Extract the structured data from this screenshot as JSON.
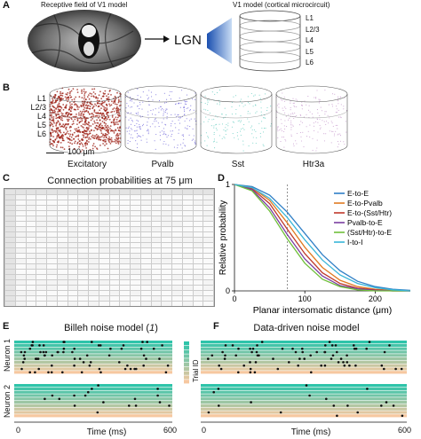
{
  "panels": {
    "A": "A",
    "B": "B",
    "C": "C",
    "D": "D",
    "E": "E",
    "F": "F"
  },
  "panel_a": {
    "rf_title": "Receptive field of V1 model",
    "lgn": "LGN",
    "v1_title": "V1 model (cortical microcircuit)",
    "layers": [
      "L1",
      "L2/3",
      "L4",
      "L5",
      "L6"
    ]
  },
  "panel_b": {
    "layers": [
      "L1",
      "L2/3",
      "L4",
      "L5",
      "L6"
    ],
    "scale_bar": "100 μm",
    "populations": [
      {
        "label": "Excitatory",
        "color": "#9b1c12"
      },
      {
        "label": "Pvalb",
        "color": "#4a3fd0"
      },
      {
        "label": "Sst",
        "color": "#3cc0b0"
      },
      {
        "label": "Htr3a",
        "color": "#b87ec0"
      }
    ]
  },
  "panel_c": {
    "title": "Connection probabilities at 75 μm"
  },
  "chart_data": {
    "type": "line",
    "xlabel": "Planar intersomatic distance (μm)",
    "ylabel": "Relative probability",
    "xlim": [
      0,
      250
    ],
    "ylim": [
      0,
      1
    ],
    "xticks": [
      0,
      100,
      200
    ],
    "yticks": [
      0,
      1
    ],
    "reference_x": 75,
    "legend_placement": "top-right",
    "x": [
      0,
      25,
      50,
      75,
      100,
      125,
      150,
      175,
      200,
      225,
      250
    ],
    "series": [
      {
        "name": "E-to-E",
        "color": "#2f7fc6",
        "values": [
          1.0,
          0.98,
          0.9,
          0.74,
          0.54,
          0.34,
          0.19,
          0.09,
          0.04,
          0.015,
          0.005
        ]
      },
      {
        "name": "E-to-Pvalb",
        "color": "#e07b22",
        "values": [
          1.0,
          0.97,
          0.85,
          0.64,
          0.41,
          0.22,
          0.1,
          0.04,
          0.015,
          0.005,
          0.0
        ]
      },
      {
        "name": "E-to-(Sst/Htr)",
        "color": "#c0392b",
        "values": [
          1.0,
          0.96,
          0.82,
          0.58,
          0.35,
          0.17,
          0.07,
          0.025,
          0.01,
          0.0,
          0.0
        ]
      },
      {
        "name": "Pvalb-to-E",
        "color": "#7b3fa0",
        "values": [
          1.0,
          0.95,
          0.78,
          0.53,
          0.3,
          0.14,
          0.05,
          0.02,
          0.005,
          0.0,
          0.0
        ]
      },
      {
        "name": "(Sst/Htr)-to-E",
        "color": "#6fbf3a",
        "values": [
          1.0,
          0.94,
          0.75,
          0.49,
          0.26,
          0.11,
          0.04,
          0.01,
          0.0,
          0.0,
          0.0
        ]
      },
      {
        "name": "I-to-I",
        "color": "#39b6d8",
        "values": [
          1.0,
          0.97,
          0.87,
          0.69,
          0.48,
          0.29,
          0.15,
          0.07,
          0.03,
          0.01,
          0.0
        ]
      }
    ]
  },
  "panel_e": {
    "title": "Billeh noise model (",
    "title_italic": "1",
    "title_end": ")",
    "neuron1": "Neuron 1",
    "neuron2": "Neuron 2",
    "xlabel": "Time (ms)",
    "x0": "0",
    "x1": "600"
  },
  "panel_f": {
    "title": "Data-driven noise model",
    "xlabel": "Time (ms)",
    "x0": "0",
    "x1": "600"
  },
  "trial_id": "Trial ID"
}
